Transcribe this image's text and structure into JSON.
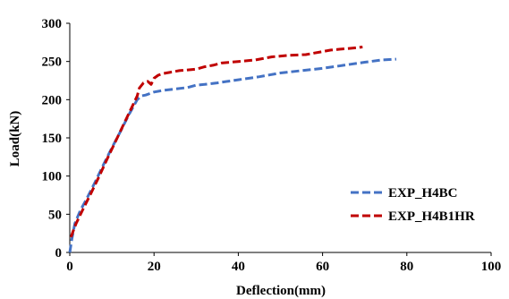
{
  "chart_data": {
    "type": "line",
    "title": "",
    "xlabel": "Deflection(mm)",
    "ylabel": "Load(kN)",
    "xlim": [
      0,
      100
    ],
    "ylim": [
      0,
      300
    ],
    "xticks": [
      0,
      20,
      40,
      60,
      80,
      100
    ],
    "yticks": [
      0,
      50,
      100,
      150,
      200,
      250,
      300
    ],
    "grid": false,
    "legend_position": "lower-right",
    "series": [
      {
        "name": "EXP_H4BC",
        "color": "#4472C4",
        "line_style": "dashed",
        "x": [
          0,
          0.5,
          1.2,
          2.5,
          4,
          6,
          8,
          10,
          12,
          14,
          16,
          17,
          18,
          20,
          22,
          25,
          28,
          30,
          32,
          35,
          40,
          45,
          50,
          55,
          60,
          65,
          70,
          74,
          77.5
        ],
        "y": [
          0,
          18,
          38,
          55,
          70,
          92,
          115,
          137,
          158,
          180,
          200,
          205,
          206,
          210,
          212,
          214,
          216,
          219,
          220,
          222,
          226,
          230,
          235,
          238,
          241,
          245,
          249,
          252,
          253
        ]
      },
      {
        "name": "EXP_H4B1HR",
        "color": "#C00000",
        "line_style": "dashed",
        "x": [
          0.3,
          0.8,
          1.5,
          3,
          5,
          7,
          9,
          11,
          13,
          15,
          16,
          16.5,
          17.5,
          18.5,
          19.3,
          20,
          21,
          22,
          24,
          26,
          28,
          30,
          32,
          34,
          36,
          40,
          44,
          48,
          52,
          56,
          60,
          62,
          64,
          66,
          68,
          69.5
        ],
        "y": [
          20,
          28,
          38,
          55,
          77,
          100,
          124,
          147,
          170,
          193,
          205,
          215,
          222,
          224,
          220,
          228,
          232,
          234,
          236,
          238,
          239,
          240,
          243,
          245,
          248,
          250,
          252,
          256,
          258,
          259,
          263,
          265,
          266,
          267,
          268,
          269
        ]
      }
    ]
  }
}
